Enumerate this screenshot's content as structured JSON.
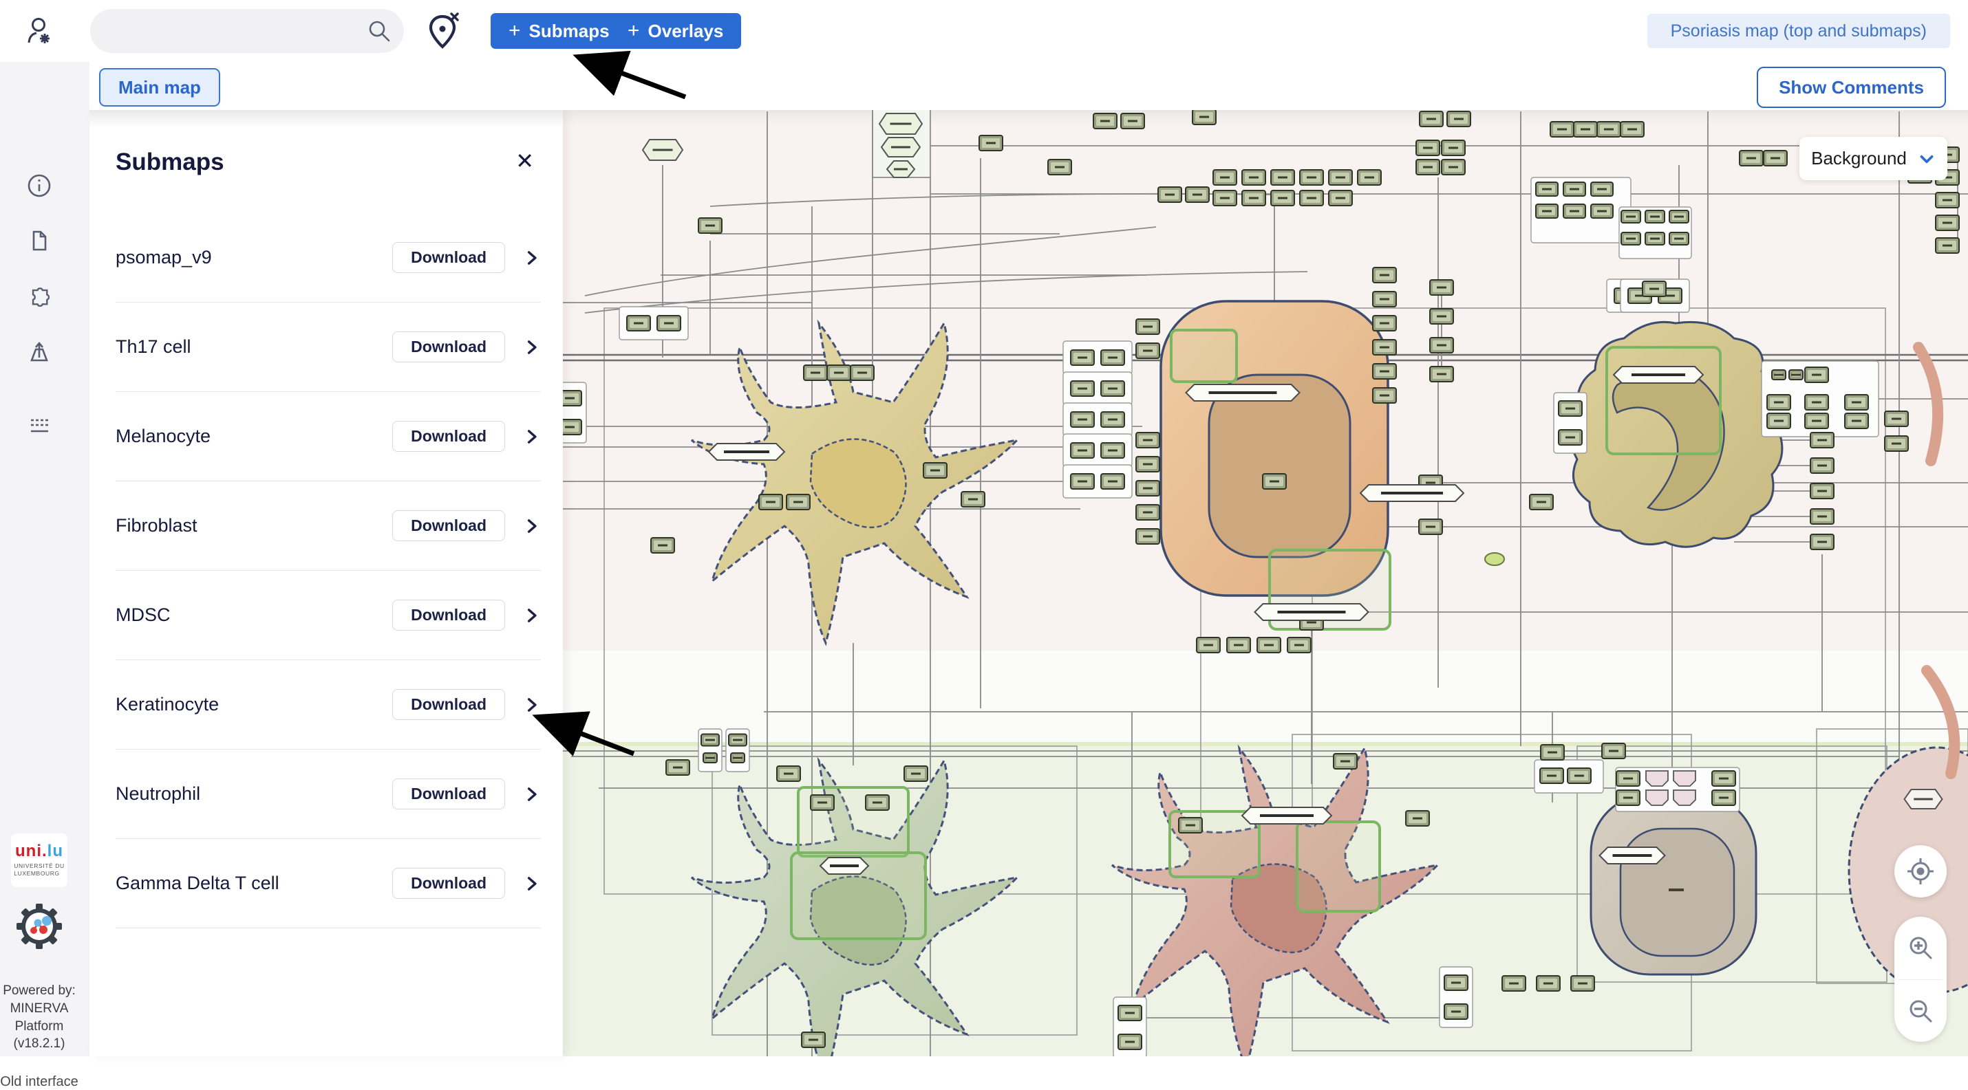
{
  "topbar": {
    "search": {
      "placeholder": "",
      "value": ""
    },
    "submaps_button": {
      "icon": "+",
      "label": "Submaps"
    },
    "overlays_button": {
      "icon": "+",
      "label": "Overlays"
    },
    "project_chip": "Psoriasis map (top and submaps)"
  },
  "tabbar": {
    "main_map_tab": "Main map",
    "show_comments_button": "Show Comments"
  },
  "sidebar": {
    "icons": [
      "info-icon",
      "document-icon",
      "plugins-icon",
      "export-icon",
      "legend-icon"
    ]
  },
  "submaps_panel": {
    "title": "Submaps",
    "close_label": "✕",
    "download_label": "Download",
    "rows": [
      "psomap_v9",
      "Th17 cell",
      "Melanocyte",
      "Fibroblast",
      "MDSC",
      "Keratinocyte",
      "Neutrophil",
      "Gamma Delta T cell"
    ]
  },
  "map_overlay": {
    "background_dropdown_label": "Background",
    "controls": [
      "locate-icon",
      "zoom-in-icon",
      "zoom-out-icon"
    ]
  },
  "footer": {
    "unilu_logo_part1": "uni",
    "unilu_logo_dot": ".",
    "unilu_logo_part2": "lu",
    "unilu_sub1": "UNIVERSITÉ DU",
    "unilu_sub2": "LUXEMBOURG",
    "powered_lines": [
      "Powered by:",
      "MINERVA",
      "Platform",
      "(v18.2.1)"
    ],
    "old_interface_link": "Old interface"
  },
  "colors": {
    "accent_blue": "#2b6cd4",
    "chip_bg": "#e8effb",
    "navy_text": "#15193b",
    "map_pink": "#f8f2f1",
    "map_green": "#eff3e6",
    "cell_border": "#3e4c70"
  }
}
